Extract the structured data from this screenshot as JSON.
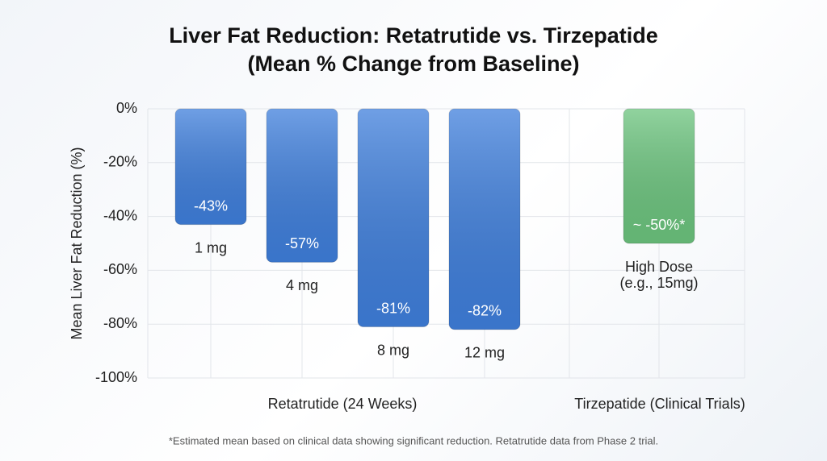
{
  "chart_data": {
    "type": "bar",
    "title": "Liver Fat Reduction: Retatrutide vs. Tirzepatide",
    "subtitle": "(Mean % Change from Baseline)",
    "y_label": "Mean Liver Fat Reduction (%)",
    "categories": [
      "1 mg",
      "4 mg",
      "8 mg",
      "12 mg",
      "High Dose\n(e.g., 15mg)"
    ],
    "values": [
      -43,
      -57,
      -81,
      -82,
      -50
    ],
    "value_labels": [
      "-43%",
      "-57%",
      "-81%",
      "-82%",
      "~ -50%*"
    ],
    "colors": [
      "#3f7fdc",
      "#3f7fdc",
      "#3f7fdc",
      "#3f7fdc",
      "#6cc47e"
    ],
    "groups": [
      "Retatrutide (24 Weeks)",
      "Tirzepatide (Clinical Trials)"
    ],
    "ylim": [
      -100,
      0
    ],
    "yticks": [
      {
        "value": 0,
        "label": "0%"
      },
      {
        "value": -20,
        "label": "-20%"
      },
      {
        "value": -40,
        "label": "-40%"
      },
      {
        "value": -60,
        "label": "-60%"
      },
      {
        "value": -80,
        "label": "-80%"
      },
      {
        "value": -100,
        "label": "-100%"
      }
    ],
    "grid": true,
    "footnote": "*Estimated mean based on clinical data showing significant reduction. Retatrutide data from Phase 2 trial."
  }
}
